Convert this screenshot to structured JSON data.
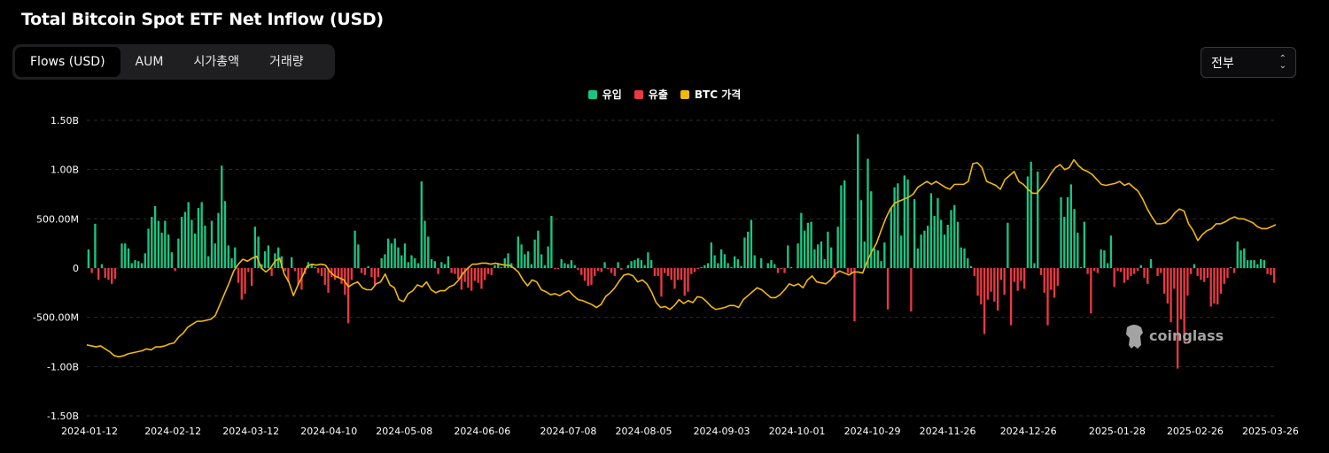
{
  "title": "Total Bitcoin Spot ETF Net Inflow (USD)",
  "tabs": [
    {
      "label": "Flows (USD)",
      "active": true
    },
    {
      "label": "AUM",
      "active": false
    },
    {
      "label": "시가총액",
      "active": false
    },
    {
      "label": "거래량",
      "active": false
    }
  ],
  "range_select": {
    "value": "전부"
  },
  "watermark": "coinglass",
  "colors": {
    "inflow": "#16c784",
    "outflow": "#ea3943",
    "btc_price": "#f0b90b",
    "background": "#000000",
    "grid": "#2a2a2a"
  },
  "chart_data": {
    "type": "bar",
    "title": "Total Bitcoin Spot ETF Net Inflow (USD)",
    "legend": [
      {
        "label": "유입",
        "color": "#16c784"
      },
      {
        "label": "유출",
        "color": "#ea3943"
      },
      {
        "label": "BTC 가격",
        "color": "#f0b90b"
      }
    ],
    "legend_position": "top-center",
    "grid": true,
    "ylim": [
      -1.5,
      1.5
    ],
    "y_unit": "B USD",
    "y_ticks": [
      "1.50B",
      "1.00B",
      "500.00M",
      "0",
      "-500.00M",
      "-1.00B",
      "-1.50B"
    ],
    "x_ticks": [
      "2024-01-12",
      "2024-02-12",
      "2024-03-12",
      "2024-04-10",
      "2024-05-08",
      "2024-06-06",
      "2024-07-08",
      "2024-08-05",
      "2024-09-03",
      "2024-10-01",
      "2024-10-29",
      "2024-11-26",
      "2024-12-26",
      "2025-01-28",
      "2025-02-26",
      "2025-03-26"
    ],
    "x_start": "2024-01-11",
    "net_flows_billion_usd": [
      0.19,
      -0.05,
      0.45,
      -0.12,
      0.04,
      -0.1,
      -0.12,
      -0.16,
      -0.11,
      0.0,
      0.25,
      0.25,
      0.2,
      0.05,
      0.08,
      0.07,
      0.05,
      0.15,
      0.4,
      0.52,
      0.63,
      0.48,
      0.36,
      0.48,
      0.34,
      0.16,
      -0.03,
      0.3,
      0.52,
      0.57,
      0.67,
      0.49,
      0.35,
      0.61,
      0.67,
      0.43,
      0.12,
      0.48,
      0.25,
      0.56,
      1.04,
      0.68,
      0.23,
      0.1,
      0.21,
      -0.15,
      -0.32,
      -0.26,
      -0.04,
      -0.18,
      0.42,
      0.32,
      0.04,
      0.17,
      0.23,
      -0.08,
      0.15,
      0.21,
      0.12,
      -0.03,
      -0.14,
      0.11,
      -0.03,
      -0.17,
      -0.22,
      -0.06,
      0.06,
      0.04,
      0.01,
      -0.05,
      -0.08,
      -0.17,
      -0.25,
      -0.09,
      -0.12,
      -0.1,
      -0.16,
      -0.27,
      -0.56,
      -0.12,
      0.38,
      0.24,
      -0.05,
      -0.07,
      0.02,
      -0.09,
      -0.18,
      -0.09,
      0.1,
      0.14,
      0.3,
      0.25,
      0.3,
      0.21,
      0.13,
      0.25,
      0.06,
      0.13,
      0.1,
      0.05,
      0.88,
      0.48,
      0.32,
      0.09,
      0.07,
      -0.06,
      0.06,
      0.04,
      0.12,
      -0.05,
      -0.06,
      -0.11,
      -0.22,
      -0.14,
      -0.2,
      -0.23,
      -0.13,
      -0.15,
      -0.21,
      -0.12,
      -0.06,
      -0.07,
      0.03,
      0.04,
      0.01,
      0.1,
      0.15,
      0.05,
      -0.01,
      0.32,
      0.24,
      0.14,
      0.17,
      0.04,
      0.29,
      0.38,
      0.14,
      0.03,
      0.22,
      0.53,
      -0.01,
      -0.01,
      0.09,
      0.05,
      0.04,
      0.08,
      0.03,
      -0.02,
      -0.07,
      -0.13,
      -0.18,
      -0.17,
      -0.08,
      -0.03,
      -0.04,
      0.06,
      -0.01,
      -0.05,
      -0.08,
      0.06,
      -0.02,
      0.0,
      0.03,
      0.07,
      0.08,
      0.1,
      0.08,
      0.03,
      0.16,
      0.08,
      -0.08,
      -0.08,
      -0.29,
      -0.05,
      -0.08,
      -0.12,
      -0.21,
      -0.12,
      -0.12,
      -0.28,
      -0.24,
      -0.06,
      -0.04,
      -0.01,
      0.01,
      0.03,
      0.05,
      0.26,
      0.13,
      0.05,
      0.19,
      0.14,
      0.05,
      0.01,
      0.12,
      0.09,
      0.02,
      0.31,
      0.37,
      0.49,
      0.13,
      0.0,
      0.1,
      0.0,
      0.05,
      0.08,
      0.04,
      -0.05,
      -0.01,
      -0.05,
      0.23,
      0.01,
      0.0,
      0.25,
      0.56,
      0.38,
      0.46,
      0.47,
      0.19,
      0.24,
      0.27,
      0.09,
      0.37,
      0.21,
      -0.09,
      0.42,
      0.84,
      0.89,
      -0.05,
      -0.06,
      -0.54,
      1.36,
      0.69,
      0.27,
      1.11,
      0.78,
      0.2,
      0.18,
      0.07,
      0.26,
      -0.42,
      0.61,
      0.82,
      0.86,
      0.33,
      0.94,
      0.9,
      -0.44,
      0.7,
      0.2,
      0.34,
      0.38,
      0.43,
      0.76,
      0.53,
      0.71,
      0.49,
      0.34,
      0.44,
      0.59,
      0.64,
      0.47,
      0.21,
      0.2,
      0.1,
      0.02,
      -0.08,
      -0.28,
      -0.37,
      -0.67,
      -0.32,
      -0.24,
      -0.34,
      -0.43,
      -0.12,
      -0.27,
      0.46,
      -0.58,
      -0.14,
      -0.23,
      -0.13,
      -0.21,
      0.93,
      1.08,
      0.05,
      0.98,
      -0.07,
      -0.25,
      -0.58,
      -0.22,
      -0.3,
      -0.18,
      0.72,
      0.52,
      0.72,
      0.85,
      0.6,
      0.36,
      0.01,
      0.47,
      -0.06,
      -0.46,
      -0.03,
      -0.05,
      0.19,
      0.18,
      0.05,
      0.33,
      -0.19,
      -0.03,
      -0.04,
      -0.15,
      -0.12,
      -0.08,
      -0.06,
      -0.03,
      0.03,
      -0.1,
      -0.16,
      0.09,
      0.0,
      -0.08,
      -0.05,
      -0.26,
      -0.36,
      -0.55,
      -0.21,
      -1.02,
      -0.52,
      -0.75,
      -0.28,
      -0.06,
      0.04,
      -0.08,
      -0.12,
      -0.14,
      -0.1,
      -0.39,
      -0.36,
      -0.37,
      -0.26,
      -0.16,
      -0.1,
      0.01,
      -0.05,
      0.27,
      0.18,
      0.2,
      0.08,
      0.08,
      0.08,
      0.04,
      0.09,
      0.08,
      -0.06,
      -0.07,
      -0.15
    ],
    "btc_price_scale": "secondary axis (not labeled)",
    "btc_price_relative": [
      -0.78,
      -0.79,
      -0.8,
      -0.79,
      -0.82,
      -0.85,
      -0.89,
      -0.9,
      -0.89,
      -0.87,
      -0.86,
      -0.85,
      -0.84,
      -0.82,
      -0.83,
      -0.8,
      -0.8,
      -0.79,
      -0.77,
      -0.76,
      -0.7,
      -0.66,
      -0.6,
      -0.57,
      -0.54,
      -0.54,
      -0.53,
      -0.52,
      -0.48,
      -0.37,
      -0.26,
      -0.15,
      -0.03,
      0.04,
      0.09,
      0.07,
      0.1,
      0.12,
      0.0,
      -0.04,
      0.0,
      0.07,
      0.1,
      -0.06,
      -0.14,
      -0.28,
      -0.17,
      -0.08,
      0.02,
      0.04,
      0.03,
      0.04,
      0.03,
      -0.04,
      -0.08,
      -0.1,
      -0.12,
      -0.19,
      -0.16,
      -0.14,
      -0.2,
      -0.22,
      -0.22,
      -0.16,
      -0.14,
      -0.06,
      -0.17,
      -0.2,
      -0.32,
      -0.34,
      -0.26,
      -0.23,
      -0.17,
      -0.19,
      -0.14,
      -0.22,
      -0.25,
      -0.23,
      -0.23,
      -0.19,
      -0.17,
      -0.12,
      -0.05,
      0.0,
      0.04,
      0.04,
      0.05,
      0.05,
      0.04,
      0.05,
      0.04,
      0.03,
      0.03,
      0.0,
      -0.04,
      -0.12,
      -0.18,
      -0.12,
      -0.14,
      -0.22,
      -0.24,
      -0.27,
      -0.26,
      -0.28,
      -0.25,
      -0.23,
      -0.28,
      -0.32,
      -0.33,
      -0.35,
      -0.37,
      -0.4,
      -0.37,
      -0.29,
      -0.25,
      -0.2,
      -0.13,
      -0.07,
      -0.06,
      -0.08,
      -0.14,
      -0.12,
      -0.16,
      -0.24,
      -0.35,
      -0.4,
      -0.39,
      -0.42,
      -0.38,
      -0.32,
      -0.36,
      -0.33,
      -0.35,
      -0.29,
      -0.3,
      -0.34,
      -0.39,
      -0.42,
      -0.41,
      -0.4,
      -0.38,
      -0.38,
      -0.4,
      -0.32,
      -0.28,
      -0.24,
      -0.2,
      -0.22,
      -0.26,
      -0.3,
      -0.3,
      -0.27,
      -0.22,
      -0.16,
      -0.18,
      -0.16,
      -0.2,
      -0.12,
      -0.08,
      -0.14,
      -0.15,
      -0.16,
      -0.12,
      -0.06,
      -0.03,
      -0.05,
      -0.07,
      -0.04,
      -0.04,
      -0.05,
      0.07,
      0.17,
      0.25,
      0.38,
      0.5,
      0.6,
      0.66,
      0.68,
      0.7,
      0.72,
      0.75,
      0.82,
      0.85,
      0.88,
      0.85,
      0.88,
      0.85,
      0.82,
      0.8,
      0.85,
      0.85,
      0.85,
      0.88,
      1.06,
      1.07,
      1.02,
      0.88,
      0.86,
      0.84,
      0.8,
      0.9,
      0.94,
      0.98,
      0.88,
      0.85,
      0.8,
      0.76,
      0.76,
      0.82,
      0.88,
      0.96,
      1.02,
      1.05,
      1.0,
      1.02,
      1.1,
      1.04,
      1.0,
      0.98,
      0.95,
      0.9,
      0.85,
      0.84,
      0.85,
      0.86,
      0.88,
      0.84,
      0.86,
      0.82,
      0.78,
      0.7,
      0.6,
      0.52,
      0.45,
      0.45,
      0.46,
      0.5,
      0.56,
      0.6,
      0.58,
      0.45,
      0.38,
      0.28,
      0.34,
      0.38,
      0.4,
      0.45,
      0.45,
      0.47,
      0.5,
      0.52,
      0.5,
      0.5,
      0.48,
      0.46,
      0.42,
      0.4,
      0.4,
      0.42,
      0.44
    ]
  }
}
